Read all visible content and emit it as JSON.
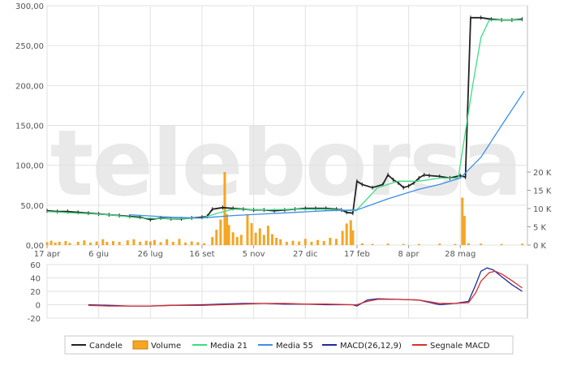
{
  "watermark": "teleborsa",
  "legend": {
    "items": [
      {
        "key": "candles",
        "label": "Candele",
        "color": "#222222",
        "kind": "line"
      },
      {
        "key": "volume",
        "label": "Volume",
        "color": "#f5a623",
        "kind": "box"
      },
      {
        "key": "ma21",
        "label": "Media 21",
        "color": "#3ddc84",
        "kind": "line"
      },
      {
        "key": "ma55",
        "label": "Media 55",
        "color": "#3a8ee6",
        "kind": "line"
      },
      {
        "key": "macd",
        "label": "MACD(26,12,9)",
        "color": "#1f2a9c",
        "kind": "line"
      },
      {
        "key": "signal",
        "label": "Segnale MACD",
        "color": "#d83030",
        "kind": "line"
      }
    ]
  },
  "chart_data": [
    {
      "type": "line",
      "panel": "price",
      "y_ticks": [
        "0,00",
        "50,00",
        "100,00",
        "150,00",
        "200,00",
        "250,00",
        "300,00"
      ],
      "ylim": [
        0,
        300
      ],
      "volume_ticks": [
        "0 K",
        "5 K",
        "10 K",
        "15 K",
        "20 K"
      ],
      "volume_lim": [
        0,
        20000
      ],
      "x_ticks": [
        "17 apr",
        "6 giu",
        "26 lug",
        "16 set",
        "5 nov",
        "27 dic",
        "17 feb",
        "8 apr",
        "28 mag"
      ],
      "x_tick_index": [
        0,
        50,
        100,
        150,
        200,
        250,
        300,
        350,
        400
      ],
      "x_range": [
        0,
        465
      ],
      "series": [
        {
          "key": "candles",
          "name": "Candele",
          "color": "#222222",
          "points": [
            [
              0,
              43
            ],
            [
              10,
              42
            ],
            [
              20,
              42
            ],
            [
              30,
              41
            ],
            [
              40,
              40
            ],
            [
              50,
              39
            ],
            [
              60,
              38
            ],
            [
              70,
              37
            ],
            [
              80,
              36
            ],
            [
              90,
              35
            ],
            [
              100,
              32
            ],
            [
              110,
              34
            ],
            [
              120,
              33
            ],
            [
              130,
              33
            ],
            [
              140,
              34
            ],
            [
              150,
              35
            ],
            [
              155,
              36
            ],
            [
              160,
              45
            ],
            [
              170,
              47
            ],
            [
              180,
              46
            ],
            [
              190,
              45
            ],
            [
              200,
              44
            ],
            [
              210,
              44
            ],
            [
              220,
              43
            ],
            [
              230,
              44
            ],
            [
              240,
              45
            ],
            [
              250,
              46
            ],
            [
              260,
              46
            ],
            [
              270,
              46
            ],
            [
              280,
              45
            ],
            [
              285,
              44
            ],
            [
              290,
              41
            ],
            [
              296,
              40
            ],
            [
              300,
              80
            ],
            [
              305,
              76
            ],
            [
              315,
              72
            ],
            [
              325,
              76
            ],
            [
              330,
              88
            ],
            [
              335,
              82
            ],
            [
              340,
              78
            ],
            [
              345,
              72
            ],
            [
              350,
              74
            ],
            [
              355,
              78
            ],
            [
              360,
              84
            ],
            [
              365,
              88
            ],
            [
              370,
              87
            ],
            [
              380,
              86
            ],
            [
              390,
              84
            ],
            [
              400,
              87
            ],
            [
              405,
              85
            ],
            [
              410,
              285
            ],
            [
              420,
              285
            ],
            [
              430,
              283
            ],
            [
              440,
              282
            ],
            [
              450,
              282
            ],
            [
              460,
              283
            ]
          ]
        },
        {
          "key": "ma21",
          "name": "Media 21",
          "color": "#3ddc84",
          "points": [
            [
              0,
              42
            ],
            [
              30,
              40
            ],
            [
              60,
              38
            ],
            [
              90,
              34
            ],
            [
              120,
              33
            ],
            [
              150,
              34
            ],
            [
              165,
              40
            ],
            [
              180,
              45
            ],
            [
              210,
              44
            ],
            [
              240,
              45
            ],
            [
              270,
              45
            ],
            [
              299,
              43
            ],
            [
              320,
              72
            ],
            [
              340,
              80
            ],
            [
              360,
              80
            ],
            [
              380,
              84
            ],
            [
              398,
              84
            ],
            [
              412,
              200
            ],
            [
              420,
              260
            ],
            [
              428,
              282
            ],
            [
              460,
              282
            ]
          ]
        },
        {
          "key": "ma55",
          "name": "Media 55",
          "color": "#3a8ee6",
          "points": [
            [
              80,
              38
            ],
            [
              120,
              35
            ],
            [
              150,
              34
            ],
            [
              180,
              37
            ],
            [
              210,
              39
            ],
            [
              240,
              41
            ],
            [
              270,
              43
            ],
            [
              300,
              44
            ],
            [
              330,
              58
            ],
            [
              360,
              70
            ],
            [
              380,
              76
            ],
            [
              400,
              84
            ],
            [
              420,
              110
            ],
            [
              440,
              150
            ],
            [
              462,
              193
            ]
          ]
        }
      ],
      "volume": {
        "name": "Volume",
        "color": "#f5a623",
        "values": [
          [
            0,
            800
          ],
          [
            4,
            1200
          ],
          [
            8,
            700
          ],
          [
            12,
            900
          ],
          [
            18,
            1100
          ],
          [
            22,
            600
          ],
          [
            30,
            900
          ],
          [
            36,
            1300
          ],
          [
            42,
            700
          ],
          [
            48,
            1000
          ],
          [
            54,
            1600
          ],
          [
            58,
            900
          ],
          [
            64,
            1100
          ],
          [
            70,
            900
          ],
          [
            78,
            1300
          ],
          [
            84,
            1600
          ],
          [
            90,
            900
          ],
          [
            96,
            1200
          ],
          [
            100,
            1000
          ],
          [
            104,
            1400
          ],
          [
            110,
            800
          ],
          [
            116,
            1600
          ],
          [
            122,
            900
          ],
          [
            128,
            1700
          ],
          [
            134,
            700
          ],
          [
            140,
            1000
          ],
          [
            146,
            800
          ],
          [
            152,
            500
          ],
          [
            160,
            2200
          ],
          [
            164,
            4200
          ],
          [
            168,
            7000
          ],
          [
            172,
            20000
          ],
          [
            174,
            8500
          ],
          [
            176,
            5500
          ],
          [
            180,
            3500
          ],
          [
            184,
            2200
          ],
          [
            188,
            2800
          ],
          [
            194,
            8500
          ],
          [
            198,
            6000
          ],
          [
            202,
            3400
          ],
          [
            206,
            4600
          ],
          [
            210,
            2800
          ],
          [
            214,
            5300
          ],
          [
            218,
            3000
          ],
          [
            222,
            2000
          ],
          [
            226,
            1600
          ],
          [
            232,
            900
          ],
          [
            238,
            1200
          ],
          [
            244,
            1000
          ],
          [
            250,
            1700
          ],
          [
            256,
            900
          ],
          [
            262,
            1400
          ],
          [
            268,
            1100
          ],
          [
            274,
            2000
          ],
          [
            280,
            1700
          ],
          [
            286,
            3900
          ],
          [
            290,
            5900
          ],
          [
            294,
            6800
          ],
          [
            296,
            4000
          ],
          [
            305,
            500
          ],
          [
            315,
            300
          ],
          [
            330,
            400
          ],
          [
            345,
            300
          ],
          [
            360,
            300
          ],
          [
            380,
            400
          ],
          [
            395,
            300
          ],
          [
            402,
            13000
          ],
          [
            404,
            8000
          ],
          [
            408,
            500
          ],
          [
            420,
            400
          ],
          [
            440,
            300
          ],
          [
            460,
            400
          ]
        ]
      }
    },
    {
      "type": "line",
      "panel": "macd",
      "y_ticks": [
        "-20",
        "0",
        "20",
        "40",
        "60"
      ],
      "ylim": [
        -20,
        60
      ],
      "x_range": [
        0,
        465
      ],
      "series": [
        {
          "key": "macd",
          "name": "MACD(26,12,9)",
          "color": "#1f2a9c",
          "points": [
            [
              40,
              0
            ],
            [
              60,
              -1
            ],
            [
              80,
              -2
            ],
            [
              100,
              -2
            ],
            [
              120,
              -1
            ],
            [
              150,
              0
            ],
            [
              170,
              1
            ],
            [
              190,
              2
            ],
            [
              210,
              2
            ],
            [
              230,
              1
            ],
            [
              250,
              1
            ],
            [
              270,
              0
            ],
            [
              296,
              0
            ],
            [
              300,
              -2
            ],
            [
              310,
              7
            ],
            [
              320,
              9
            ],
            [
              340,
              8
            ],
            [
              360,
              7
            ],
            [
              380,
              0
            ],
            [
              395,
              2
            ],
            [
              408,
              5
            ],
            [
              415,
              30
            ],
            [
              420,
              50
            ],
            [
              426,
              55
            ],
            [
              432,
              52
            ],
            [
              440,
              42
            ],
            [
              450,
              30
            ],
            [
              460,
              20
            ]
          ]
        },
        {
          "key": "signal",
          "name": "Segnale MACD",
          "color": "#d83030",
          "points": [
            [
              40,
              -1
            ],
            [
              60,
              -2
            ],
            [
              80,
              -2
            ],
            [
              100,
              -2
            ],
            [
              120,
              -1
            ],
            [
              150,
              -1
            ],
            [
              170,
              0
            ],
            [
              190,
              1
            ],
            [
              210,
              2
            ],
            [
              230,
              2
            ],
            [
              250,
              1
            ],
            [
              270,
              1
            ],
            [
              296,
              0
            ],
            [
              300,
              0
            ],
            [
              310,
              5
            ],
            [
              320,
              8
            ],
            [
              340,
              8
            ],
            [
              360,
              7
            ],
            [
              380,
              2
            ],
            [
              395,
              2
            ],
            [
              408,
              3
            ],
            [
              415,
              18
            ],
            [
              420,
              35
            ],
            [
              428,
              48
            ],
            [
              434,
              50
            ],
            [
              440,
              46
            ],
            [
              450,
              36
            ],
            [
              460,
              25
            ]
          ]
        }
      ]
    }
  ]
}
